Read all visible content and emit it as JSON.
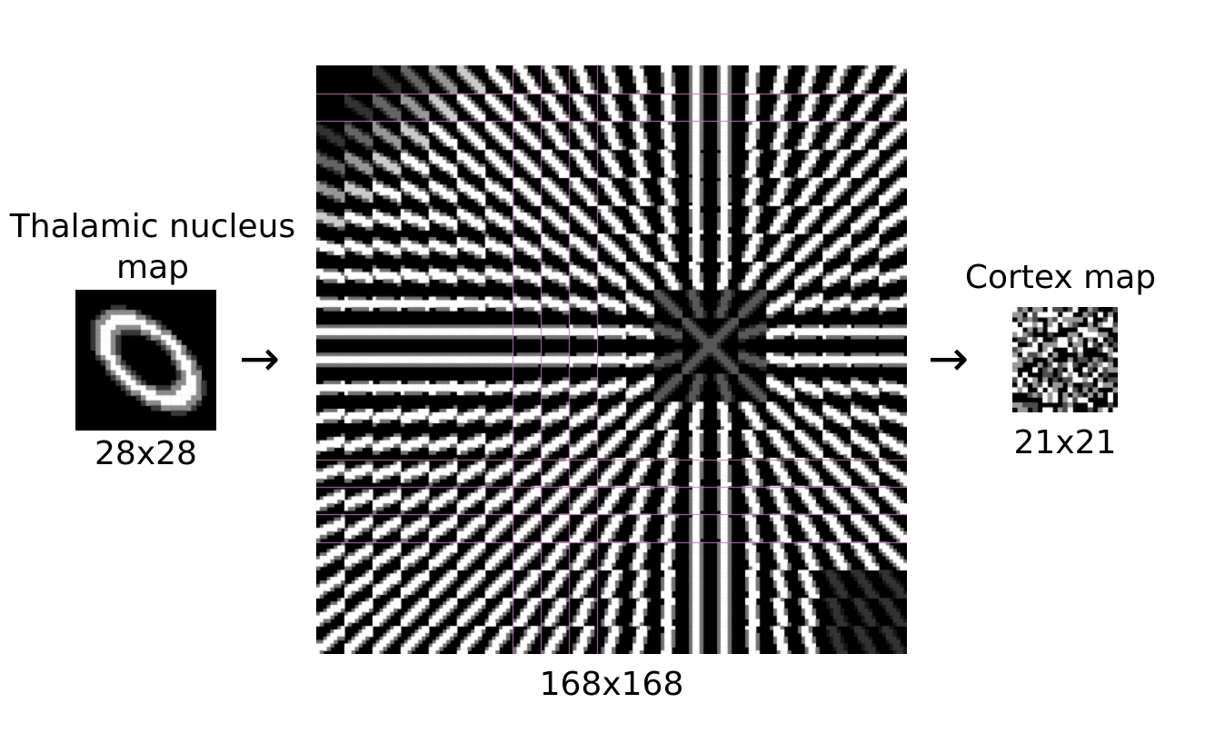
{
  "thalamic": {
    "title_line1": "Thalamic nucleus",
    "title_line2": "map",
    "size_label": "28x28"
  },
  "middle": {
    "size_label": "168x168"
  },
  "cortex": {
    "title": "Cortex map",
    "size_label": "21x21"
  },
  "arrow_glyph": "→",
  "colors": {
    "background": "#ffffff",
    "panel": "#000000",
    "foreground": "#ffffff",
    "grid_lines": "#b77ab7"
  }
}
